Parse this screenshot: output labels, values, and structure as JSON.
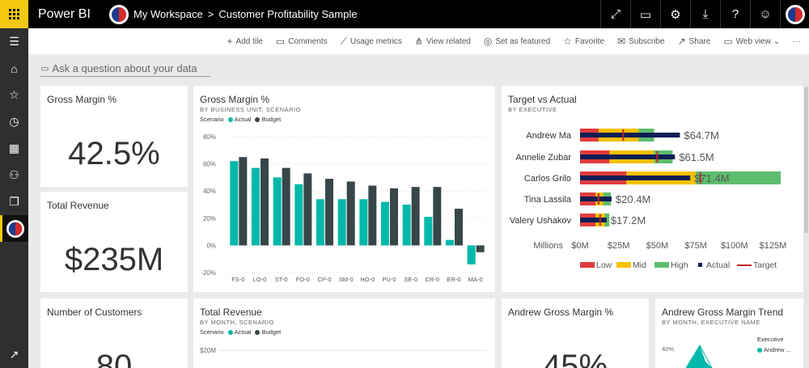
{
  "app": {
    "brand": "Power BI",
    "workspace": "My Workspace",
    "report": "Customer Profitability Sample"
  },
  "top_icons": [
    "expand-icon",
    "comment-icon",
    "gear-icon",
    "download-icon",
    "help-icon",
    "smiley-icon"
  ],
  "leftnav": [
    "hamburger-icon",
    "home-icon",
    "star-icon",
    "clock-icon",
    "apps-icon",
    "shared-icon",
    "workspaces-icon"
  ],
  "actions": [
    {
      "icon": "+",
      "label": "Add tile",
      "name": "add-tile"
    },
    {
      "icon": "▭",
      "label": "Comments",
      "name": "comments"
    },
    {
      "icon": "⟋",
      "label": "Usage metrics",
      "name": "usage-metrics"
    },
    {
      "icon": "⋔",
      "label": "View related",
      "name": "view-related"
    },
    {
      "icon": "◎",
      "label": "Set as featured",
      "name": "set-as-featured"
    },
    {
      "icon": "☆",
      "label": "Favorite",
      "name": "favorite"
    },
    {
      "icon": "✉",
      "label": "Subscribe",
      "name": "subscribe"
    },
    {
      "icon": "↗",
      "label": "Share",
      "name": "share"
    },
    {
      "icon": "▭",
      "label": "Web view ⌄",
      "name": "web-view"
    },
    {
      "icon": "",
      "label": "···",
      "name": "more"
    }
  ],
  "qna": {
    "placeholder": "Ask a question about your data"
  },
  "tiles": {
    "gross_margin": {
      "title": "Gross Margin %",
      "value": "42.5%"
    },
    "total_revenue": {
      "title": "Total Revenue",
      "value": "$235M"
    },
    "customers": {
      "title": "Number of Customers",
      "value": "80"
    },
    "andrew_gm": {
      "title": "Andrew Gross Margin %",
      "value": "45%"
    },
    "gm_chart": {
      "title": "Gross Margin %",
      "subtitle": "BY BUSINESS UNIT, SCENARIO",
      "legend_title": "Scenario",
      "legend": [
        "Actual",
        "Budget"
      ]
    },
    "tva_chart": {
      "title": "Target vs Actual",
      "subtitle": "BY EXECUTIVE"
    },
    "tr_chart": {
      "title": "Total Revenue",
      "subtitle": "BY MONTH, SCENARIO",
      "legend_title": "Scenario",
      "legend": [
        "Actual",
        "Budget"
      ],
      "ytick": "$20M"
    },
    "agm_trend": {
      "title": "Andrew Gross Margin Trend",
      "subtitle": "BY MONTH, EXECUTIVE NAME",
      "legend_title": "Executive",
      "legend_item": "Andrew ...",
      "ytick": "40%"
    }
  },
  "colors": {
    "actual": "#01b8aa",
    "budget": "#374649",
    "low": "#e03c3c",
    "mid": "#f5c000",
    "high": "#5dbd6e",
    "actual_marker": "#0b1d55",
    "target": "#c0262d"
  },
  "chart_data": [
    {
      "type": "bar",
      "title": "Gross Margin %",
      "categories": [
        "FS-0",
        "LO-0",
        "ST-0",
        "FO-0",
        "CP-0",
        "SM-0",
        "HO-0",
        "PU-0",
        "SE-0",
        "CR-0",
        "ER-0",
        "MA-0"
      ],
      "series": [
        {
          "name": "Actual",
          "values": [
            62,
            57,
            50,
            45,
            34,
            34,
            34,
            32,
            30,
            21,
            4,
            -14
          ]
        },
        {
          "name": "Budget",
          "values": [
            65,
            64,
            57,
            53,
            49,
            47,
            44,
            42,
            43,
            43,
            27,
            -5
          ]
        }
      ],
      "yticks": [
        "80%",
        "60%",
        "40%",
        "20%",
        "0%",
        "-20%"
      ],
      "ylim": [
        -20,
        80
      ]
    },
    {
      "type": "bar",
      "title": "Target vs Actual",
      "categories": [
        "Andrew Ma",
        "Annelie Zubar",
        "Carlos Grilo",
        "Tina Lassila",
        "Valery Ushakov"
      ],
      "bands": [
        {
          "low": 12,
          "mid": 38,
          "high": 48
        },
        {
          "low": 19,
          "mid": 48,
          "high": 60
        },
        {
          "low": 30,
          "mid": 75,
          "high": 130
        },
        {
          "low": 10,
          "mid": 15,
          "high": 20
        },
        {
          "low": 10,
          "mid": 16,
          "high": 19
        }
      ],
      "actual": [
        64.7,
        61.5,
        71.4,
        20.4,
        17.2
      ],
      "target": [
        28,
        50,
        78,
        12,
        13
      ],
      "labels": [
        "$64.7M",
        "$61.5M",
        "$71.4M",
        "$20.4M",
        "$17.2M"
      ],
      "xticks": [
        "$0M",
        "$25M",
        "$50M",
        "$75M",
        "$100M",
        "$125M"
      ],
      "xunit": "Millions",
      "xlim": [
        0,
        130
      ],
      "legend": [
        "Low",
        "Mid",
        "High",
        "Actual",
        "Target"
      ]
    }
  ]
}
